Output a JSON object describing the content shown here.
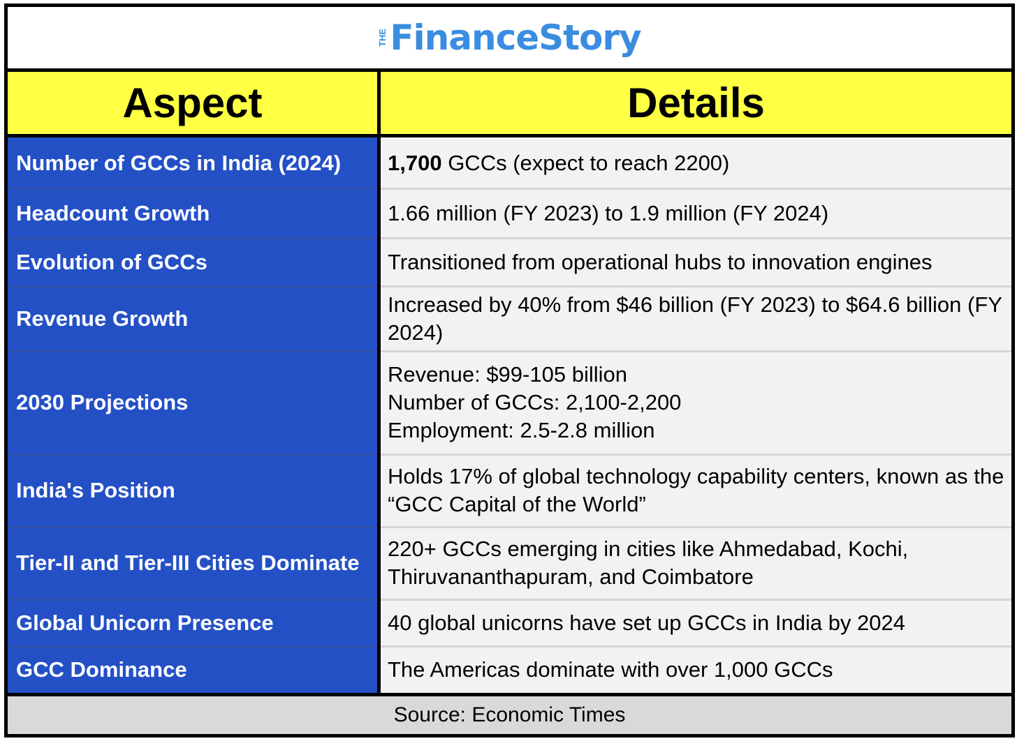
{
  "logo": {
    "prefix": "THE",
    "name": "FinanceStory"
  },
  "table": {
    "headers": {
      "aspect": "Aspect",
      "details": "Details"
    },
    "rows": [
      {
        "aspect": "Number of GCCs in India (2024)",
        "details_bold": "1,700",
        "details": " GCCs (expect to reach 2200)"
      },
      {
        "aspect": "Headcount Growth",
        "details": "1.66 million (FY 2023) to 1.9 million (FY 2024)"
      },
      {
        "aspect": "Evolution of GCCs",
        "details": "Transitioned from operational hubs to innovation engines"
      },
      {
        "aspect": "Revenue Growth",
        "details": "Increased by 40% from $46 billion (FY 2023) to $64.6 billion (FY 2024)"
      },
      {
        "aspect": "2030 Projections",
        "details": "Revenue: $99-105 billion\nNumber of GCCs: 2,100-2,200\nEmployment: 2.5-2.8 million"
      },
      {
        "aspect": "India's Position",
        "details": "Holds 17% of global technology capability centers, known as the “GCC Capital of the World”"
      },
      {
        "aspect": "Tier-II and Tier-III Cities Dominate",
        "details": "220+ GCCs emerging in cities like Ahmedabad, Kochi, Thiruvananthapuram, and Coimbatore"
      },
      {
        "aspect": "Global Unicorn Presence",
        "details": "40 global unicorns have set up GCCs in India by 2024"
      },
      {
        "aspect": "GCC Dominance",
        "details": "The Americas dominate with over 1,000 GCCs"
      }
    ],
    "source": "Source: Economic Times"
  },
  "colors": {
    "header_bg": "#ffff44",
    "aspect_bg": "#2450c6",
    "details_bg": "#f2f2f2",
    "logo": "#3a8de0",
    "source_bg": "#d9d9d9"
  }
}
